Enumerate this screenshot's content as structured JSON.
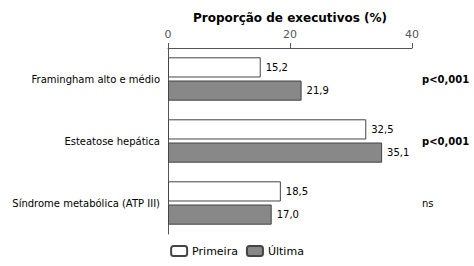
{
  "chart_data": {
    "type": "bar",
    "orientation": "horizontal",
    "xlabel": "Proporção de executivos (%)",
    "categories": [
      "Framingham alto e médio",
      "Esteatose hepática",
      "Síndrome metabólica (ATP III)"
    ],
    "series": [
      {
        "name": "Primeira",
        "color": "#ffffff",
        "values": [
          15.2,
          32.5,
          18.5
        ],
        "value_labels": [
          "15,2",
          "32,5",
          "18,5"
        ]
      },
      {
        "name": "Última",
        "color": "#888888",
        "values": [
          21.9,
          35.1,
          17.0
        ],
        "value_labels": [
          "21,9",
          "35,1",
          "17,0"
        ]
      }
    ],
    "annotations": [
      "p<0,001",
      "p<0,001",
      "ns"
    ],
    "xlim": [
      0,
      40
    ],
    "xticks": [
      0,
      20,
      40
    ],
    "grid": false,
    "legend": "bottom",
    "data_labels": true
  }
}
